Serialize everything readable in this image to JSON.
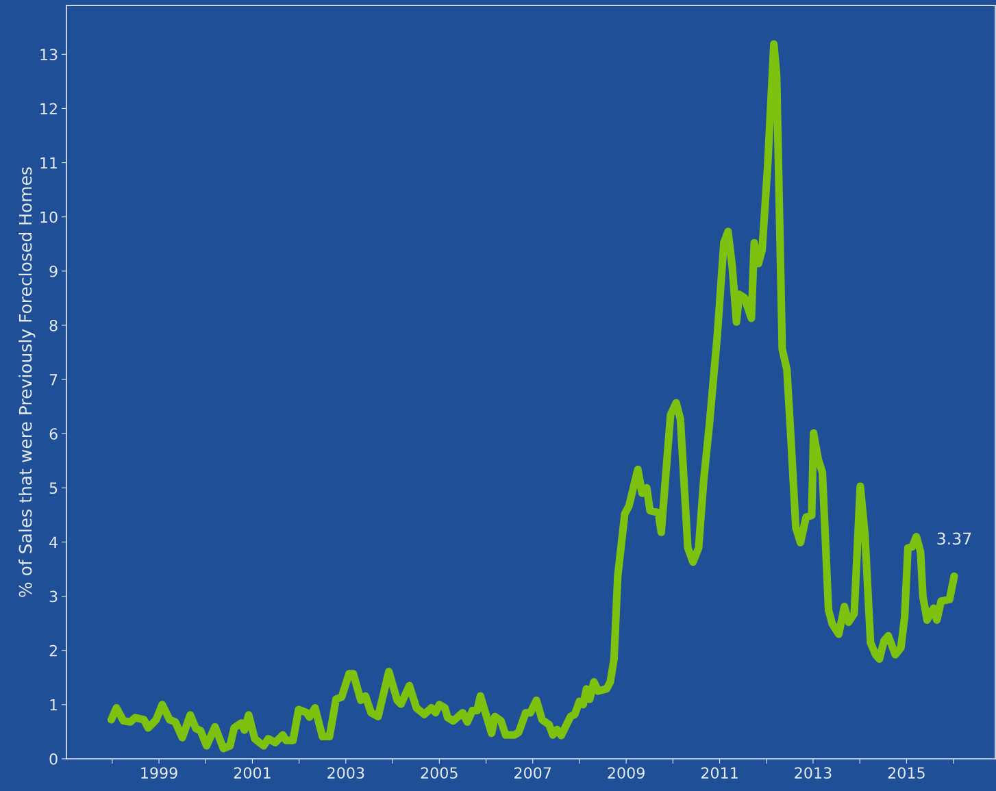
{
  "chart_data": {
    "type": "line",
    "ylabel": "% of Sales that were Previously Foreclosed Homes",
    "x": [
      1997.98,
      1998.09,
      1998.24,
      1998.39,
      1998.49,
      1998.68,
      1998.77,
      1998.94,
      1999.07,
      1999.23,
      1999.35,
      1999.5,
      1999.67,
      1999.79,
      1999.89,
      2000.02,
      2000.2,
      2000.38,
      2000.52,
      2000.61,
      2000.76,
      2000.83,
      2000.92,
      2001.05,
      2001.24,
      2001.34,
      2001.49,
      2001.65,
      2001.72,
      2001.87,
      2001.99,
      2002.16,
      2002.22,
      2002.34,
      2002.5,
      2002.65,
      2002.79,
      2002.91,
      2003.07,
      2003.16,
      2003.32,
      2003.42,
      2003.54,
      2003.69,
      2003.92,
      2004.1,
      2004.18,
      2004.36,
      2004.51,
      2004.68,
      2004.83,
      2004.92,
      2005.0,
      2005.12,
      2005.18,
      2005.3,
      2005.5,
      2005.6,
      2005.71,
      2005.81,
      2005.88,
      2006.12,
      2006.19,
      2006.32,
      2006.42,
      2006.61,
      2006.7,
      2006.85,
      2006.95,
      2007.08,
      2007.2,
      2007.35,
      2007.43,
      2007.52,
      2007.61,
      2007.7,
      2007.81,
      2007.9,
      2008.0,
      2008.08,
      2008.15,
      2008.22,
      2008.31,
      2008.4,
      2008.58,
      2008.66,
      2008.74,
      2008.82,
      2008.97,
      2009.06,
      2009.25,
      2009.34,
      2009.44,
      2009.51,
      2009.69,
      2009.75,
      2009.95,
      2010.07,
      2010.16,
      2010.32,
      2010.43,
      2010.55,
      2010.66,
      2010.78,
      2010.95,
      2011.09,
      2011.18,
      2011.27,
      2011.36,
      2011.42,
      2011.53,
      2011.68,
      2011.74,
      2011.83,
      2011.91,
      2012.03,
      2012.16,
      2012.22,
      2012.34,
      2012.44,
      2012.53,
      2012.63,
      2012.73,
      2012.85,
      2012.97,
      2013.01,
      2013.11,
      2013.2,
      2013.33,
      2013.41,
      2013.55,
      2013.67,
      2013.76,
      2013.88,
      2014.01,
      2014.11,
      2014.23,
      2014.34,
      2014.42,
      2014.52,
      2014.61,
      2014.76,
      2014.88,
      2014.96,
      2015.03,
      2015.12,
      2015.21,
      2015.3,
      2015.35,
      2015.44,
      2015.58,
      2015.65,
      2015.74,
      2015.92,
      2016.02
    ],
    "series": [
      {
        "color": "#7dc20f",
        "values": [
          0.72,
          0.94,
          0.7,
          0.68,
          0.76,
          0.72,
          0.57,
          0.72,
          1.0,
          0.72,
          0.68,
          0.39,
          0.81,
          0.56,
          0.52,
          0.24,
          0.59,
          0.19,
          0.24,
          0.57,
          0.66,
          0.53,
          0.81,
          0.37,
          0.24,
          0.37,
          0.3,
          0.44,
          0.34,
          0.34,
          0.91,
          0.85,
          0.77,
          0.94,
          0.41,
          0.41,
          1.1,
          1.14,
          1.57,
          1.57,
          1.08,
          1.16,
          0.85,
          0.78,
          1.61,
          1.08,
          1.01,
          1.35,
          0.94,
          0.82,
          0.94,
          0.85,
          1.0,
          0.94,
          0.76,
          0.7,
          0.85,
          0.68,
          0.89,
          0.89,
          1.16,
          0.47,
          0.78,
          0.7,
          0.44,
          0.44,
          0.49,
          0.85,
          0.85,
          1.08,
          0.72,
          0.63,
          0.44,
          0.54,
          0.43,
          0.59,
          0.78,
          0.82,
          1.06,
          1.0,
          1.29,
          1.1,
          1.42,
          1.25,
          1.29,
          1.42,
          1.84,
          3.38,
          4.52,
          4.67,
          5.34,
          4.9,
          5.0,
          4.58,
          4.54,
          4.18,
          6.35,
          6.57,
          6.27,
          3.89,
          3.63,
          3.89,
          5.15,
          6.16,
          7.81,
          9.52,
          9.73,
          9.08,
          8.06,
          8.57,
          8.51,
          8.13,
          9.52,
          9.14,
          9.39,
          10.97,
          13.19,
          12.62,
          7.56,
          7.18,
          5.85,
          4.27,
          3.99,
          4.46,
          4.49,
          6.01,
          5.53,
          5.28,
          2.75,
          2.49,
          2.3,
          2.81,
          2.52,
          2.68,
          5.03,
          4.14,
          2.14,
          1.92,
          1.84,
          2.18,
          2.27,
          1.92,
          2.05,
          2.62,
          3.89,
          3.91,
          4.1,
          3.82,
          3.0,
          2.56,
          2.78,
          2.56,
          2.91,
          2.94,
          3.37
        ]
      }
    ],
    "xlim": [
      1997.02,
      2016.9
    ],
    "xticks": [
      {
        "value": 1998,
        "label": null
      },
      1999,
      {
        "value": 2000,
        "label": null
      },
      2001,
      {
        "value": 2002,
        "label": null
      },
      2003,
      {
        "value": 2004,
        "label": null
      },
      2005,
      {
        "value": 2006,
        "label": null
      },
      2007,
      {
        "value": 2008,
        "label": null
      },
      2009,
      {
        "value": 2010,
        "label": null
      },
      2011,
      {
        "value": 2012,
        "label": null
      },
      2013,
      {
        "value": 2014,
        "label": null
      },
      2015,
      {
        "value": 2016,
        "label": null
      }
    ],
    "ylim": [
      0,
      13.9
    ],
    "yticks": [
      0,
      1,
      2,
      3,
      4,
      5,
      6,
      7,
      8,
      9,
      10,
      11,
      12,
      13
    ],
    "annotations": [
      {
        "text": "3.37",
        "x": 2016.02,
        "y": 3.37
      }
    ],
    "grid": false,
    "legend": false,
    "marker": "none",
    "line_style": "solid"
  }
}
